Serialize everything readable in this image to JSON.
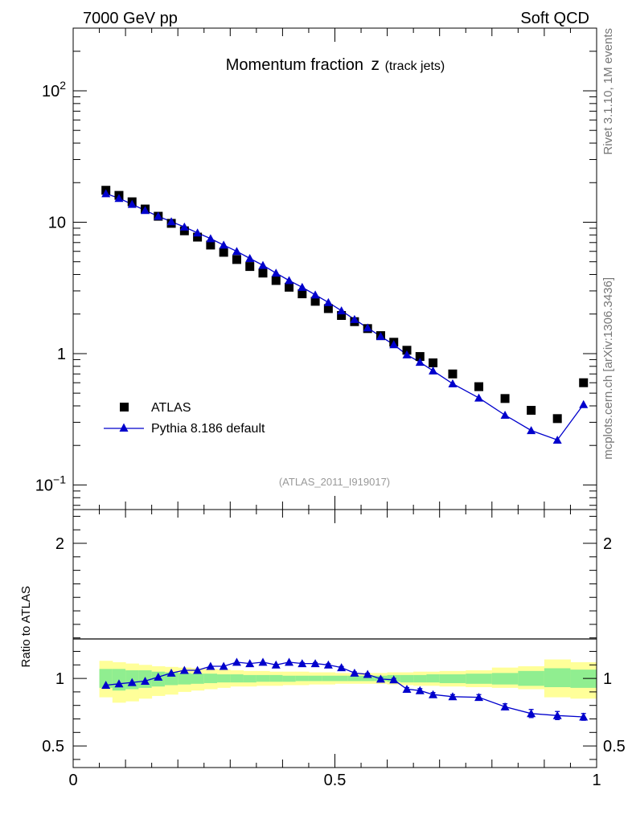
{
  "header": {
    "left": "7000 GeV pp",
    "right": "Soft QCD"
  },
  "side_text": {
    "top": "Rivet 3.1.10,  1M events",
    "bottom": "mcplots.cern.ch [arXiv:1306.3436]"
  },
  "chart_data": [
    {
      "type": "scatter",
      "panel": "main",
      "title": "Momentum fraction",
      "title_var": "z",
      "title_sub": "(track jets)",
      "analysis_label": "(ATLAS_2011_I919017)",
      "xlim": [
        0,
        1
      ],
      "ylim": [
        0.065,
        300
      ],
      "yscale": "log",
      "y_tick_labels": [
        {
          "base": "10",
          "exp": "−1",
          "value": 0.1
        },
        {
          "text": "1",
          "value": 1
        },
        {
          "text": "10",
          "value": 10
        },
        {
          "base": "10",
          "exp": "2",
          "value": 100
        }
      ],
      "legend_position": "bottom-left",
      "series": [
        {
          "name": "ATLAS",
          "marker": "square",
          "color": "#000000",
          "x": [
            0.0625,
            0.0875,
            0.1125,
            0.1375,
            0.1625,
            0.1875,
            0.2125,
            0.2375,
            0.2625,
            0.2875,
            0.3125,
            0.3375,
            0.3625,
            0.3875,
            0.4125,
            0.4375,
            0.4625,
            0.4875,
            0.5125,
            0.5375,
            0.5625,
            0.5875,
            0.6125,
            0.6375,
            0.6625,
            0.6875,
            0.725,
            0.775,
            0.825,
            0.875,
            0.925,
            0.975
          ],
          "y": [
            17.5,
            16.0,
            14.3,
            12.6,
            11.1,
            9.8,
            8.6,
            7.7,
            6.7,
            5.9,
            5.2,
            4.6,
            4.1,
            3.6,
            3.2,
            2.85,
            2.5,
            2.2,
            1.95,
            1.75,
            1.55,
            1.37,
            1.22,
            1.06,
            0.95,
            0.85,
            0.7,
            0.56,
            0.455,
            0.37,
            0.32,
            0.6
          ]
        },
        {
          "name": "Pythia 8.186 default",
          "marker": "triangle",
          "color": "#0000cc",
          "x": [
            0.0625,
            0.0875,
            0.1125,
            0.1375,
            0.1625,
            0.1875,
            0.2125,
            0.2375,
            0.2625,
            0.2875,
            0.3125,
            0.3375,
            0.3625,
            0.3875,
            0.4125,
            0.4375,
            0.4625,
            0.4875,
            0.5125,
            0.5375,
            0.5625,
            0.5875,
            0.6125,
            0.6375,
            0.6625,
            0.6875,
            0.725,
            0.775,
            0.825,
            0.875,
            0.925,
            0.975
          ],
          "y": [
            16.5,
            15.2,
            13.7,
            12.3,
            11.1,
            10.1,
            9.2,
            8.3,
            7.5,
            6.7,
            6.0,
            5.3,
            4.7,
            4.1,
            3.6,
            3.2,
            2.8,
            2.45,
            2.12,
            1.82,
            1.57,
            1.35,
            1.17,
            0.98,
            0.86,
            0.74,
            0.59,
            0.46,
            0.34,
            0.26,
            0.22,
            0.41
          ]
        }
      ]
    },
    {
      "type": "scatter",
      "panel": "ratio",
      "ylabel": "Ratio to ATLAS",
      "xlim": [
        0,
        1
      ],
      "ylim": [
        0.34,
        2.25
      ],
      "x_tick_labels": [
        {
          "text": "0",
          "value": 0
        },
        {
          "text": "0.5",
          "value": 0.5
        },
        {
          "text": "1",
          "value": 1
        }
      ],
      "y_tick_labels": [
        {
          "text": "0.5",
          "value": 0.5
        },
        {
          "text": "1",
          "value": 1
        },
        {
          "text": "2",
          "value": 2
        }
      ],
      "bands": {
        "edges": [
          0.05,
          0.075,
          0.1,
          0.125,
          0.15,
          0.175,
          0.2,
          0.225,
          0.25,
          0.275,
          0.3,
          0.325,
          0.35,
          0.375,
          0.4,
          0.425,
          0.45,
          0.475,
          0.5,
          0.525,
          0.55,
          0.575,
          0.6,
          0.625,
          0.65,
          0.675,
          0.7,
          0.75,
          0.8,
          0.85,
          0.9,
          0.95,
          1.0
        ],
        "stat_lo": [
          0.93,
          0.91,
          0.92,
          0.93,
          0.94,
          0.95,
          0.955,
          0.96,
          0.965,
          0.97,
          0.97,
          0.97,
          0.975,
          0.975,
          0.975,
          0.98,
          0.98,
          0.98,
          0.98,
          0.98,
          0.98,
          0.98,
          0.975,
          0.97,
          0.97,
          0.97,
          0.965,
          0.96,
          0.955,
          0.945,
          0.935,
          0.93
        ],
        "stat_hi": [
          1.07,
          1.07,
          1.06,
          1.06,
          1.05,
          1.045,
          1.04,
          1.035,
          1.035,
          1.03,
          1.03,
          1.025,
          1.025,
          1.025,
          1.02,
          1.02,
          1.02,
          1.02,
          1.02,
          1.02,
          1.02,
          1.02,
          1.025,
          1.025,
          1.025,
          1.03,
          1.03,
          1.035,
          1.04,
          1.055,
          1.075,
          1.065
        ],
        "total_lo": [
          0.86,
          0.82,
          0.83,
          0.85,
          0.87,
          0.88,
          0.9,
          0.91,
          0.92,
          0.93,
          0.94,
          0.94,
          0.945,
          0.945,
          0.95,
          0.95,
          0.955,
          0.955,
          0.96,
          0.96,
          0.96,
          0.96,
          0.955,
          0.95,
          0.945,
          0.945,
          0.94,
          0.935,
          0.93,
          0.92,
          0.86,
          0.85
        ],
        "total_hi": [
          1.13,
          1.12,
          1.11,
          1.1,
          1.09,
          1.085,
          1.08,
          1.075,
          1.07,
          1.065,
          1.06,
          1.055,
          1.055,
          1.05,
          1.05,
          1.05,
          1.045,
          1.045,
          1.04,
          1.04,
          1.04,
          1.04,
          1.045,
          1.045,
          1.05,
          1.05,
          1.055,
          1.06,
          1.08,
          1.09,
          1.14,
          1.12
        ],
        "stat_color": "#90ee90",
        "total_color": "#ffff99"
      },
      "series": [
        {
          "name": "Pythia 8.186 default",
          "marker": "triangle",
          "color": "#0000cc",
          "x": [
            0.0625,
            0.0875,
            0.1125,
            0.1375,
            0.1625,
            0.1875,
            0.2125,
            0.2375,
            0.2625,
            0.2875,
            0.3125,
            0.3375,
            0.3625,
            0.3875,
            0.4125,
            0.4375,
            0.4625,
            0.4875,
            0.5125,
            0.5375,
            0.5625,
            0.5875,
            0.6125,
            0.6375,
            0.6625,
            0.6875,
            0.725,
            0.775,
            0.825,
            0.875,
            0.925,
            0.975
          ],
          "y": [
            0.95,
            0.96,
            0.97,
            0.98,
            1.01,
            1.04,
            1.06,
            1.06,
            1.09,
            1.09,
            1.12,
            1.11,
            1.12,
            1.1,
            1.12,
            1.11,
            1.11,
            1.1,
            1.08,
            1.04,
            1.03,
            0.995,
            0.99,
            0.92,
            0.91,
            0.88,
            0.865,
            0.86,
            0.79,
            0.74,
            0.725,
            0.715
          ],
          "yerr": [
            0.005,
            0.005,
            0.005,
            0.005,
            0.005,
            0.005,
            0.005,
            0.005,
            0.005,
            0.005,
            0.006,
            0.006,
            0.006,
            0.006,
            0.006,
            0.007,
            0.007,
            0.008,
            0.008,
            0.008,
            0.008,
            0.01,
            0.01,
            0.012,
            0.014,
            0.015,
            0.015,
            0.02,
            0.022,
            0.03,
            0.03,
            0.025
          ]
        }
      ]
    }
  ]
}
